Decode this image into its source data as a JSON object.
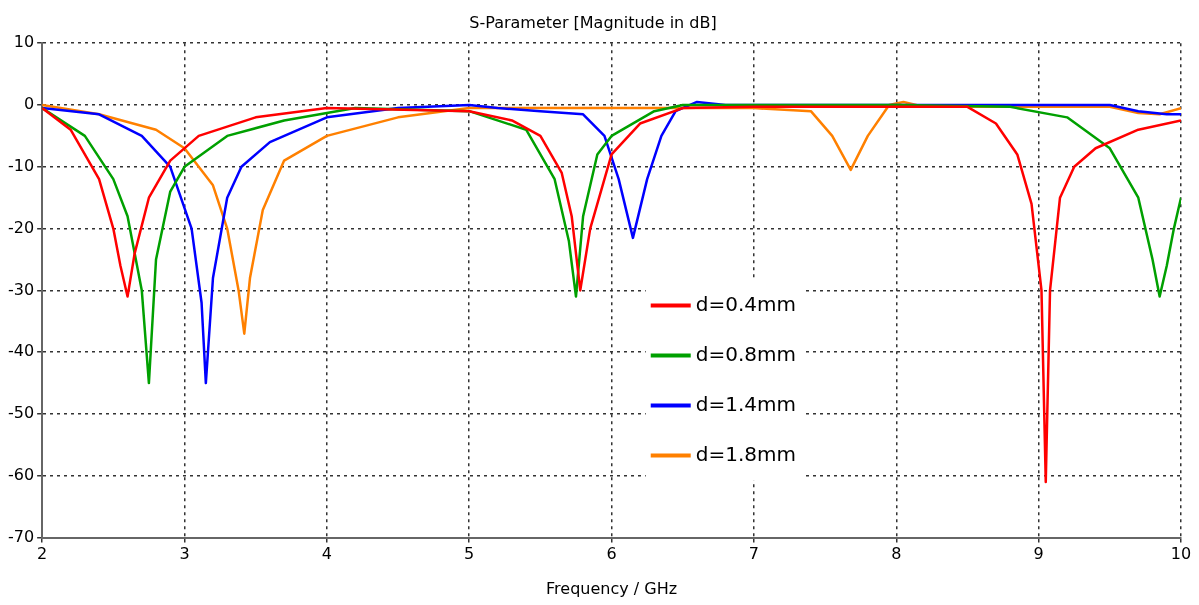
{
  "chart_data": {
    "type": "line",
    "title": "S-Parameter [Magnitude in dB]",
    "xlabel": "Frequency / GHz",
    "xlim": [
      2,
      10
    ],
    "xticks": [
      2,
      3,
      4,
      5,
      6,
      7,
      8,
      9,
      10
    ],
    "ylim": [
      -70,
      10
    ],
    "yticks": [
      -70,
      -60,
      -50,
      -40,
      -30,
      -20,
      -10,
      0,
      10
    ],
    "grid": true,
    "legend": "center",
    "marker": "none",
    "line_style": "solid",
    "series": [
      {
        "name": "d=0.4mm",
        "color": "#ff0000",
        "x": [
          2,
          2.2,
          2.4,
          2.5,
          2.55,
          2.6,
          2.65,
          2.75,
          2.9,
          3.1,
          3.5,
          4,
          5,
          5.3,
          5.5,
          5.65,
          5.72,
          5.78,
          5.85,
          6,
          6.2,
          6.5,
          7,
          8,
          8.5,
          8.7,
          8.85,
          8.95,
          9.02,
          9.05,
          9.08,
          9.15,
          9.25,
          9.4,
          9.7,
          10
        ],
        "values": [
          -0.5,
          -4,
          -12,
          -20,
          -26,
          -31,
          -24,
          -15,
          -9,
          -5,
          -2,
          -0.5,
          -1,
          -2.5,
          -5,
          -11,
          -18,
          -30,
          -20,
          -8,
          -3,
          -0.5,
          -0.3,
          -0.3,
          -0.3,
          -3,
          -8,
          -16,
          -30,
          -61,
          -30,
          -15,
          -10,
          -7,
          -4,
          -2.5
        ]
      },
      {
        "name": "d=0.8mm",
        "color": "#00a000",
        "x": [
          2,
          2.3,
          2.5,
          2.6,
          2.7,
          2.75,
          2.8,
          2.9,
          3,
          3.3,
          3.7,
          4.2,
          5,
          5.4,
          5.6,
          5.7,
          5.75,
          5.8,
          5.9,
          6,
          6.3,
          6.5,
          7,
          8,
          8.8,
          9.2,
          9.5,
          9.7,
          9.8,
          9.85,
          9.9,
          9.95,
          10
        ],
        "values": [
          -0.5,
          -5,
          -12,
          -18,
          -30,
          -45,
          -25,
          -14,
          -10,
          -5,
          -2.5,
          -0.5,
          -1,
          -4,
          -12,
          -22,
          -31,
          -18,
          -8,
          -5,
          -1,
          0,
          0,
          0,
          -0.3,
          -2,
          -7,
          -15,
          -25,
          -31,
          -26,
          -20,
          -15
        ]
      },
      {
        "name": "d=1.4mm",
        "color": "#0000ff",
        "x": [
          2,
          2.4,
          2.7,
          2.9,
          3.05,
          3.12,
          3.15,
          3.2,
          3.3,
          3.4,
          3.6,
          4,
          4.5,
          5,
          5.2,
          5.5,
          5.8,
          5.95,
          6.05,
          6.15,
          6.25,
          6.35,
          6.45,
          6.6,
          6.8,
          8,
          9.5,
          9.7,
          9.9,
          10
        ],
        "values": [
          -0.5,
          -1.5,
          -5,
          -10,
          -20,
          -32,
          -45,
          -28,
          -15,
          -10,
          -6,
          -2,
          -0.5,
          0,
          -0.5,
          -1,
          -1.5,
          -5,
          -12,
          -21.5,
          -12,
          -5,
          -1,
          0.5,
          0,
          0,
          0,
          -1,
          -1.5,
          -1.5
        ]
      },
      {
        "name": "d=1.8mm",
        "color": "#ff8000",
        "x": [
          2,
          2.4,
          2.8,
          3,
          3.2,
          3.3,
          3.38,
          3.42,
          3.46,
          3.55,
          3.7,
          4,
          4.5,
          5,
          6,
          7,
          7.4,
          7.55,
          7.68,
          7.8,
          7.95,
          8.05,
          8.2,
          9.5,
          9.7,
          9.85,
          10
        ],
        "values": [
          0,
          -1.5,
          -4,
          -7,
          -13,
          -20,
          -30,
          -37,
          -28,
          -17,
          -9,
          -5,
          -2,
          -0.5,
          -0.5,
          -0.5,
          -1,
          -5,
          -10.5,
          -5,
          0,
          0.5,
          -0.3,
          -0.3,
          -1.3,
          -1.5,
          -0.5
        ]
      }
    ]
  }
}
